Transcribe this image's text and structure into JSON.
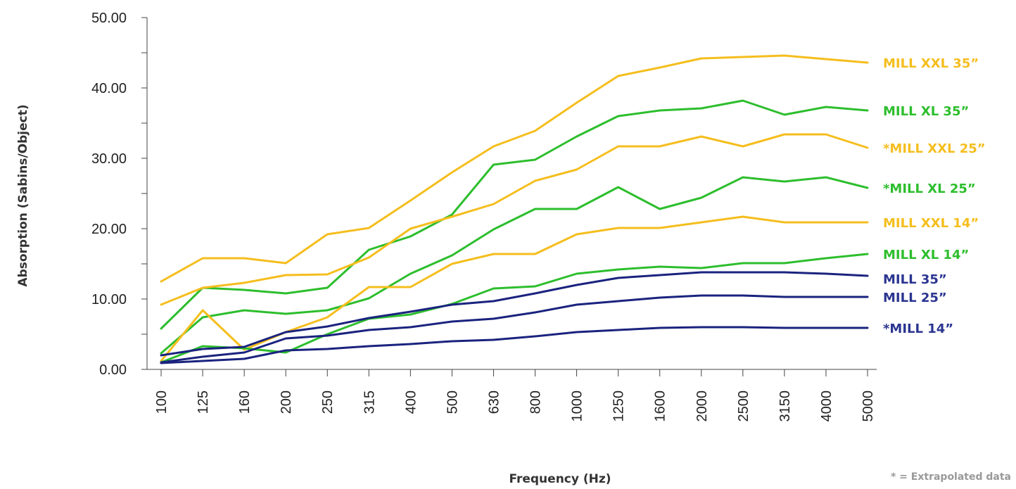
{
  "chart_data": {
    "type": "line",
    "xlabel": "Frequency (Hz)",
    "ylabel": "Absorption (Sabins/Object)",
    "ylim": [
      0,
      50
    ],
    "yticks": [
      "0.00",
      "10.00",
      "20.00",
      "30.00",
      "40.00",
      "50.00"
    ],
    "categories": [
      "100",
      "125",
      "160",
      "200",
      "250",
      "315",
      "400",
      "500",
      "630",
      "800",
      "1000",
      "1250",
      "1600",
      "2000",
      "2500",
      "3150",
      "4000",
      "5000"
    ],
    "note": "* = Extrapolated data",
    "grid": false,
    "legend": "right (direct labels)",
    "colors": {
      "yellow": "#F5BE1E",
      "green": "#2DBE2D",
      "navy": "#1A237E"
    },
    "series": [
      {
        "name": "MILL XXL 35”",
        "color": "#F5BE1E",
        "label_color": "#F5BE1E",
        "values": [
          12.5,
          15.8,
          15.8,
          15.1,
          19.2,
          20.1,
          24.0,
          28.0,
          31.7,
          33.9,
          37.9,
          41.7,
          42.9,
          44.2,
          44.4,
          44.6,
          44.1,
          43.6
        ]
      },
      {
        "name": "MILL XL 35”",
        "color": "#2DBE2D",
        "label_color": "#2DBE2D",
        "values": [
          5.8,
          11.6,
          11.3,
          10.8,
          11.6,
          17.0,
          18.9,
          22.0,
          29.1,
          29.8,
          33.1,
          36.0,
          36.8,
          37.1,
          38.2,
          36.2,
          37.3,
          36.8
        ]
      },
      {
        "name": "*MILL XXL 25”",
        "color": "#F5BE1E",
        "label_color": "#F5BE1E",
        "values": [
          9.2,
          11.6,
          12.3,
          13.4,
          13.5,
          15.9,
          20.0,
          21.7,
          23.5,
          26.8,
          28.4,
          31.7,
          31.7,
          33.1,
          31.7,
          33.4,
          33.4,
          31.5
        ]
      },
      {
        "name": "*MILL XL 25”",
        "color": "#2DBE2D",
        "label_color": "#2DBE2D",
        "values": [
          2.3,
          7.4,
          8.4,
          7.9,
          8.4,
          10.1,
          13.6,
          16.2,
          19.9,
          22.8,
          22.8,
          25.9,
          22.8,
          24.4,
          27.3,
          26.7,
          27.3,
          25.8
        ]
      },
      {
        "name": "MILL XXL 14”",
        "color": "#F5BE1E",
        "label_color": "#F5BE1E",
        "values": [
          1.2,
          8.4,
          2.8,
          5.3,
          7.4,
          11.7,
          11.7,
          15.0,
          16.4,
          16.4,
          19.2,
          20.1,
          20.1,
          20.9,
          21.7,
          20.9,
          20.9,
          20.9
        ]
      },
      {
        "name": "MILL XL 14”",
        "color": "#2DBE2D",
        "label_color": "#2DBE2D",
        "values": [
          1.0,
          3.3,
          3.0,
          2.4,
          5.0,
          7.2,
          7.8,
          9.3,
          11.5,
          11.8,
          13.6,
          14.2,
          14.6,
          14.4,
          15.1,
          15.1,
          15.8,
          16.4
        ]
      },
      {
        "name": "MILL 35”",
        "color": "#1A237E",
        "label_color": "#2B3590",
        "values": [
          2.0,
          2.9,
          3.2,
          5.3,
          6.1,
          7.3,
          8.2,
          9.2,
          9.7,
          10.8,
          12.0,
          13.0,
          13.4,
          13.8,
          13.8,
          13.8,
          13.6,
          13.3
        ]
      },
      {
        "name": "MILL 25”",
        "color": "#1A237E",
        "label_color": "#2B3590",
        "values": [
          1.0,
          1.8,
          2.4,
          4.4,
          4.8,
          5.6,
          6.0,
          6.8,
          7.2,
          8.1,
          9.2,
          9.7,
          10.2,
          10.5,
          10.5,
          10.3,
          10.3,
          10.3
        ]
      },
      {
        "name": "*MILL 14”",
        "color": "#1A237E",
        "label_color": "#2B3590",
        "values": [
          0.9,
          1.2,
          1.5,
          2.7,
          2.9,
          3.3,
          3.6,
          4.0,
          4.2,
          4.7,
          5.3,
          5.6,
          5.9,
          6.0,
          6.0,
          5.9,
          5.9,
          5.9
        ]
      }
    ]
  }
}
